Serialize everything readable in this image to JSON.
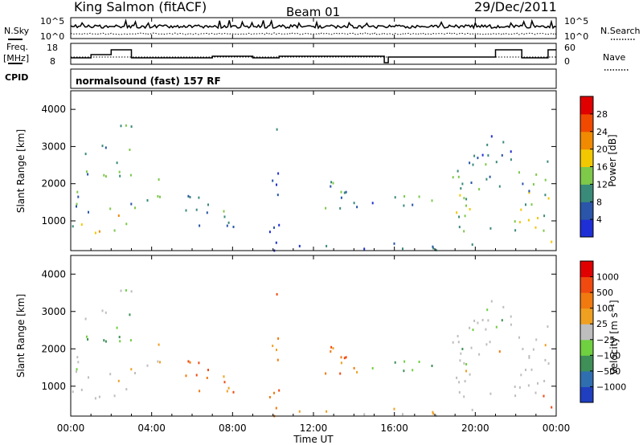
{
  "header": {
    "title": "King Salmon (fitACF)",
    "beam": "Beam 01",
    "date": "29/Dec/2011"
  },
  "noise_panel": {
    "left_label": "N.Sky",
    "right_label": "N.Search",
    "left_ticks": [
      "10^5",
      "10^0"
    ],
    "right_ticks": [
      "10^5",
      "10^0"
    ]
  },
  "freq_panel": {
    "left_label_1": "Freq.",
    "left_label_2": "[MHz]",
    "right_label": "Nave",
    "left_ticks": [
      "18",
      "8"
    ],
    "right_ticks": [
      "60",
      "0"
    ]
  },
  "cpid_panel": {
    "label": "CPID",
    "text": "normalsound (fast) 157 RF"
  },
  "x_axis": {
    "label": "Time UT",
    "ticks": [
      "00:00",
      "04:00",
      "08:00",
      "12:00",
      "16:00",
      "20:00",
      "00:00"
    ]
  },
  "chart_data": [
    {
      "type": "heatmap",
      "name": "power",
      "ylabel": "Slant Range [km]",
      "xlabel": "Time UT",
      "xlim": [
        0,
        24
      ],
      "ylim": [
        200,
        4500
      ],
      "yticks": [
        "1000",
        "2000",
        "3000",
        "4000"
      ],
      "colorbar": {
        "label": "Power [dB]",
        "ticks": [
          "4",
          "8",
          "12",
          "16",
          "20",
          "24",
          "28"
        ],
        "colors": [
          "#1f2fd6",
          "#2a55a8",
          "#3a8a7a",
          "#7ec84a",
          "#f2c800",
          "#f08a00",
          "#f04a00",
          "#e00000"
        ]
      }
    },
    {
      "type": "heatmap",
      "name": "velocity",
      "ylabel": "Slant Range [km]",
      "xlabel": "Time UT",
      "xlim": [
        0,
        24
      ],
      "ylim": [
        200,
        4500
      ],
      "yticks": [
        "1000",
        "2000",
        "3000",
        "4000"
      ],
      "colorbar": {
        "label": "Velocity [m s⁻¹]",
        "ticks": [
          "1000",
          "500",
          "100",
          "25",
          "−25",
          "−100",
          "−500",
          "−1000"
        ],
        "colors": [
          "#1f3fbf",
          "#2f6fb0",
          "#3e8f58",
          "#6fd040",
          "#bebebe",
          "#f0a020",
          "#f07a10",
          "#f04a10",
          "#e00000"
        ]
      }
    }
  ],
  "echo_regions": [
    {
      "t0": 0.0,
      "t1": 1.3,
      "r0": 650,
      "r1": 1250,
      "p": 3,
      "v": 0
    },
    {
      "t0": 0.1,
      "t1": 1.2,
      "r0": 1200,
      "r1": 2300,
      "p": 2,
      "v": 0
    },
    {
      "t0": 0.2,
      "t1": 0.9,
      "r0": 2200,
      "r1": 3200,
      "p": 2,
      "v": 1
    },
    {
      "t0": 1.3,
      "t1": 2.9,
      "r0": 700,
      "r1": 1400,
      "p": 4,
      "v": 0
    },
    {
      "t0": 1.0,
      "t1": 3.1,
      "r0": 2200,
      "r1": 3600,
      "p": 2,
      "v": 1
    },
    {
      "t0": 2.9,
      "t1": 3.8,
      "r0": 1300,
      "r1": 2000,
      "p": 2,
      "v": 0
    },
    {
      "t0": 3.7,
      "t1": 4.4,
      "r0": 1400,
      "r1": 2300,
      "p": 2,
      "v": 3
    },
    {
      "t0": 5.3,
      "t1": 8.8,
      "r0": 800,
      "r1": 1700,
      "p": 2,
      "v": 2
    },
    {
      "t0": 9.8,
      "t1": 10.4,
      "r0": 400,
      "r1": 3500,
      "p": 1,
      "v": 2
    },
    {
      "t0": 12.5,
      "t1": 14.8,
      "r0": 1000,
      "r1": 2100,
      "p": 2,
      "v": 2
    },
    {
      "t0": 14.8,
      "t1": 15.2,
      "r0": 1200,
      "r1": 1700,
      "p": 1,
      "v": 1
    },
    {
      "t0": 15.9,
      "t1": 18.1,
      "r0": 1200,
      "r1": 1800,
      "p": 2,
      "v": 1
    },
    {
      "t0": 18.8,
      "t1": 23.9,
      "r0": 700,
      "r1": 1800,
      "p": 3,
      "v": 0
    },
    {
      "t0": 18.7,
      "t1": 23.9,
      "r0": 1700,
      "r1": 2800,
      "p": 2,
      "v": 0
    },
    {
      "t0": 20.0,
      "t1": 22.0,
      "r0": 2600,
      "r1": 3400,
      "p": 1,
      "v": 1
    },
    {
      "t0": 23.0,
      "t1": 23.9,
      "r0": 300,
      "r1": 800,
      "p": 4,
      "v": 2
    },
    {
      "t0": 10.0,
      "t1": 20.0,
      "r0": 200,
      "r1": 450,
      "p": 1,
      "v": 3
    }
  ]
}
